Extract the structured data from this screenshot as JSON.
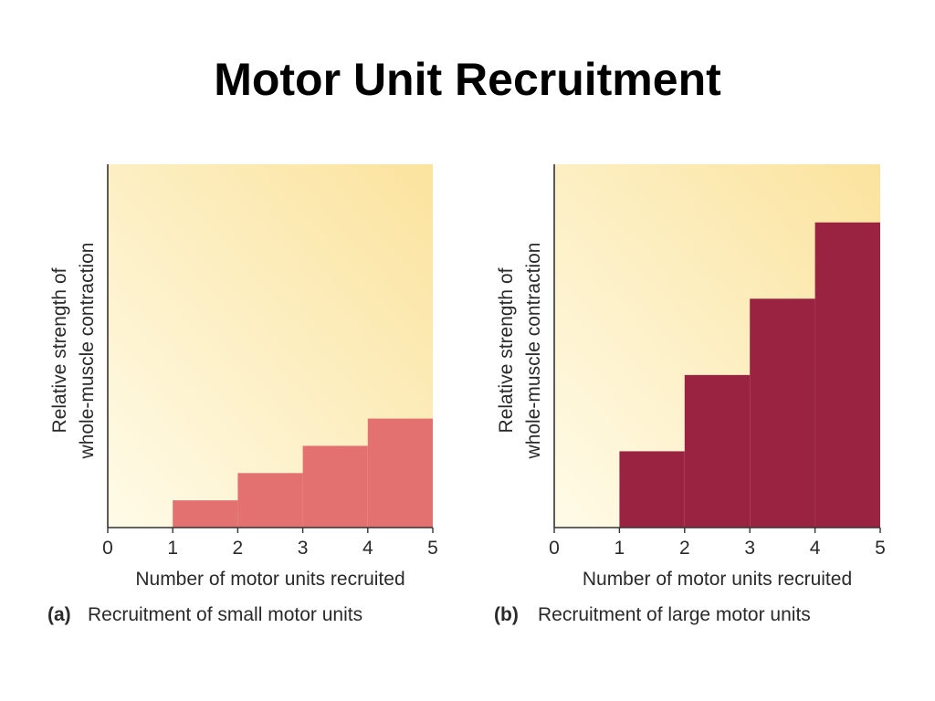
{
  "title": "Motor Unit Recruitment",
  "colors": {
    "bg_light": "#fffbe8",
    "bg_warm": "#fbe39e",
    "axis": "#333333"
  },
  "chart_data": [
    {
      "type": "area",
      "step": true,
      "panel": "(a)",
      "caption": "Recruitment of small motor units",
      "xlabel": "Number of motor units recruited",
      "ylabel_lines": [
        "Relative strength of",
        "whole-muscle contraction"
      ],
      "xlim": [
        0,
        5
      ],
      "ylim": [
        0,
        1
      ],
      "xticks": [
        "0",
        "1",
        "2",
        "3",
        "4",
        "5"
      ],
      "color": "#e2716f",
      "steps": [
        {
          "x_start": 1,
          "x_end": 2,
          "value": 0.075
        },
        {
          "x_start": 2,
          "x_end": 3,
          "value": 0.15
        },
        {
          "x_start": 3,
          "x_end": 4,
          "value": 0.225
        },
        {
          "x_start": 4,
          "x_end": 5,
          "value": 0.3
        }
      ]
    },
    {
      "type": "area",
      "step": true,
      "panel": "(b)",
      "caption": "Recruitment of large motor units",
      "xlabel": "Number of motor units recruited",
      "ylabel_lines": [
        "Relative strength of",
        "whole-muscle contraction"
      ],
      "xlim": [
        0,
        5
      ],
      "ylim": [
        0,
        1
      ],
      "xticks": [
        "0",
        "1",
        "2",
        "3",
        "4",
        "5"
      ],
      "color": "#9b2342",
      "steps": [
        {
          "x_start": 1,
          "x_end": 2,
          "value": 0.21
        },
        {
          "x_start": 2,
          "x_end": 3,
          "value": 0.42
        },
        {
          "x_start": 3,
          "x_end": 4,
          "value": 0.63
        },
        {
          "x_start": 4,
          "x_end": 5,
          "value": 0.84
        }
      ]
    }
  ]
}
